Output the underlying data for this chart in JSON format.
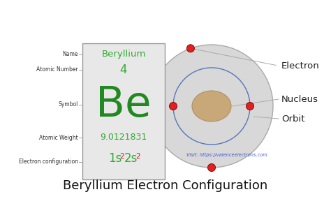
{
  "title": "Beryllium Electron Configuration",
  "title_fontsize": 13,
  "bg_color": "#ffffff",
  "element_name": "Beryllium",
  "atomic_number": "4",
  "symbol": "Be",
  "atomic_weight": "9.0121831",
  "green_color": "#33aa33",
  "dark_green": "#228822",
  "superscript_color": "#cc2222",
  "box_bg": "#e8e8e8",
  "box_border": "#999999",
  "label_color": "#333333",
  "left_labels": [
    "Name",
    "Atomic Number",
    "Symbol",
    "Atomic Weight",
    "Electron configuration"
  ],
  "right_labels": [
    "Electron",
    "Nucleus",
    "Orbit"
  ],
  "nucleus_color": "#c8a878",
  "orbit_color": "#5577bb",
  "outer_shell_color": "#d8d8d8",
  "electron_color": "#dd2222",
  "watermark": "Visit: https://valenceelectrons.com",
  "watermark_color": "#4455cc"
}
